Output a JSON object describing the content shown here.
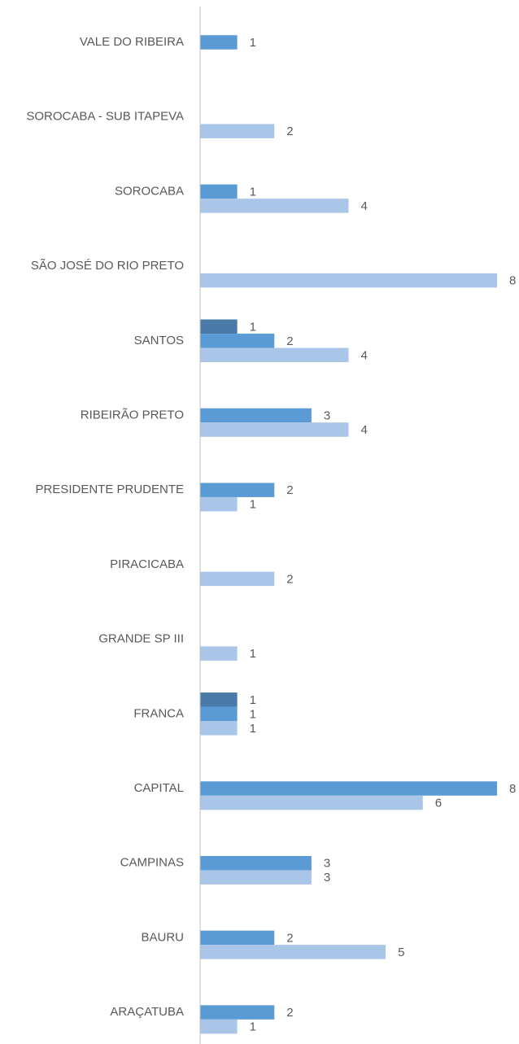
{
  "chart_data": {
    "type": "hbar",
    "categories": [
      "VALE DO RIBEIRA",
      "SOROCABA - SUB ITAPEVA",
      "SOROCABA",
      "SÃO JOSÉ DO RIO PRETO",
      "SANTOS",
      "RIBEIRÃO PRETO",
      "PRESIDENTE PRUDENTE",
      "PIRACICABA",
      "GRANDE SP III",
      "FRANCA",
      "CAPITAL",
      "CAMPINAS",
      "BAURU",
      "ARAÇATUBA"
    ],
    "series": [
      {
        "color": "#4a7aa8",
        "values": [
          null,
          null,
          null,
          null,
          1,
          null,
          null,
          null,
          null,
          1,
          null,
          null,
          null,
          null
        ]
      },
      {
        "color": "#5b9bd5",
        "values": [
          1,
          null,
          1,
          null,
          2,
          3,
          2,
          null,
          null,
          1,
          8,
          3,
          2,
          2
        ]
      },
      {
        "color": "#a9c6e8",
        "values": [
          null,
          2,
          4,
          8,
          4,
          4,
          1,
          2,
          1,
          1,
          6,
          3,
          5,
          1
        ]
      }
    ],
    "xlim": [
      0,
      8
    ]
  }
}
